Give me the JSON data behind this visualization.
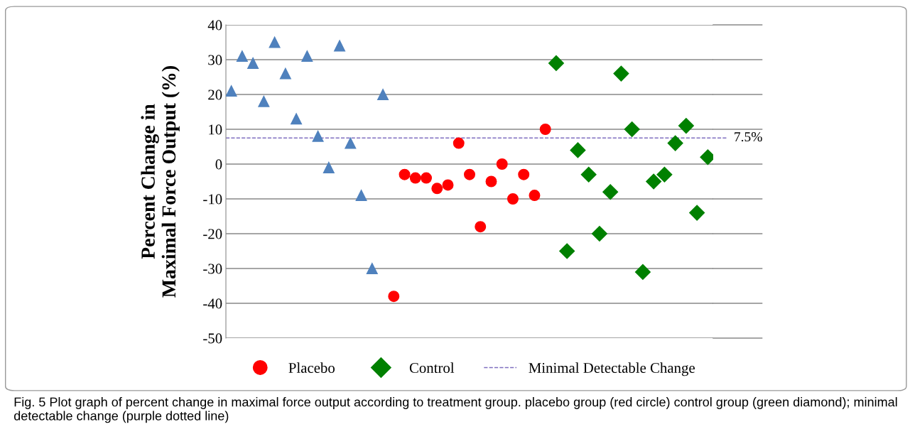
{
  "chart_data": {
    "type": "scatter",
    "ylabel": "Percent Change in Maximal Force Output (%)",
    "categories": [
      null,
      null,
      null,
      null,
      null,
      null,
      null,
      null,
      null,
      null,
      null,
      null,
      null,
      null,
      null,
      null,
      null,
      null,
      null,
      null,
      null,
      null,
      null,
      null,
      null,
      null,
      null,
      null,
      null,
      null,
      null,
      null,
      null,
      null,
      null,
      null,
      null,
      null,
      null,
      null,
      null,
      null,
      null,
      null,
      null
    ],
    "series": [
      {
        "color": "#4f81bd",
        "marker": "triangle",
        "values": [
          21,
          31,
          29,
          18,
          35,
          26,
          13,
          31,
          8,
          -1,
          34,
          6,
          -9,
          -30,
          20,
          null,
          null,
          null,
          null,
          null,
          null,
          null,
          null,
          null,
          null,
          null,
          null,
          null,
          null,
          null,
          null,
          null,
          null,
          null,
          null,
          null,
          null,
          null,
          null,
          null,
          null,
          null,
          null,
          null,
          null
        ]
      },
      {
        "name": "Placebo",
        "color": "#ff0000",
        "marker": "circle",
        "values": [
          null,
          null,
          null,
          null,
          null,
          null,
          null,
          null,
          null,
          null,
          null,
          null,
          null,
          null,
          null,
          -38,
          -3,
          -4,
          -4,
          -7,
          -6,
          6,
          -3,
          -18,
          -5,
          0,
          -10,
          -3,
          -9,
          10,
          null,
          null,
          null,
          null,
          null,
          null,
          null,
          null,
          null,
          null,
          null,
          null,
          null,
          null,
          null
        ]
      },
      {
        "name": "Control",
        "color": "#008000",
        "marker": "diamond",
        "values": [
          null,
          null,
          null,
          null,
          null,
          null,
          null,
          null,
          null,
          null,
          null,
          null,
          null,
          null,
          null,
          null,
          null,
          null,
          null,
          null,
          null,
          null,
          null,
          null,
          null,
          null,
          null,
          null,
          null,
          null,
          29,
          -25,
          4,
          -3,
          -20,
          -8,
          26,
          10,
          -31,
          -5,
          -3,
          6,
          11,
          -14,
          2
        ]
      }
    ],
    "ylim": [
      -50,
      40
    ],
    "yticks": [
      -50,
      -40,
      -30,
      -20,
      -10,
      0,
      10,
      20,
      30,
      40
    ],
    "grid": "y",
    "legend": "bottom",
    "ref_lines": [
      {
        "axis": "y",
        "value": 7.5,
        "label": "Minimal Detectable Change",
        "color": "#7f6fbf",
        "line_style": "dashed"
      }
    ],
    "annotations": [
      "7.5%",
      "Fig. 5 Plot graph of percent change in maximal force output according to treatment group. placebo group (red circle) control group (green diamond); minimal detectable change (purple dotted line)"
    ]
  }
}
